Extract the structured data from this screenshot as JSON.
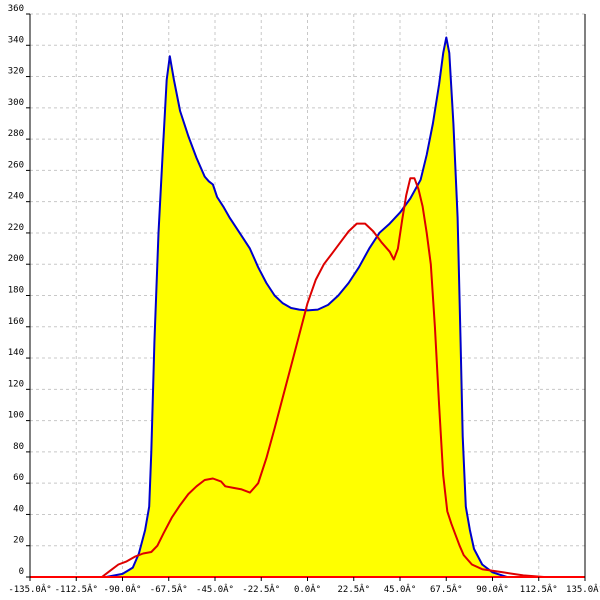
{
  "chart_data": {
    "type": "area",
    "title": "",
    "xlabel": "",
    "ylabel": "",
    "xlim": [
      -135,
      135
    ],
    "ylim": [
      0,
      360
    ],
    "grid": true,
    "x_ticks": [
      {
        "value": -135,
        "label": "-135.0Â°"
      },
      {
        "value": -112.5,
        "label": "-112.5Â°"
      },
      {
        "value": -90,
        "label": "-90.0Â°"
      },
      {
        "value": -67.5,
        "label": "-67.5Â°"
      },
      {
        "value": -45,
        "label": "-45.0Â°"
      },
      {
        "value": -22.5,
        "label": "-22.5Â°"
      },
      {
        "value": 0,
        "label": "0.0Â°"
      },
      {
        "value": 22.5,
        "label": "22.5Â°"
      },
      {
        "value": 45,
        "label": "45.0Â°"
      },
      {
        "value": 67.5,
        "label": "67.5Â°"
      },
      {
        "value": 90,
        "label": "90.0Â°"
      },
      {
        "value": 112.5,
        "label": "112.5Â°"
      },
      {
        "value": 135,
        "label": "135.0Â°"
      }
    ],
    "y_ticks": [
      {
        "value": 0,
        "label": "0"
      },
      {
        "value": 20,
        "label": "20"
      },
      {
        "value": 40,
        "label": "40"
      },
      {
        "value": 60,
        "label": "60"
      },
      {
        "value": 80,
        "label": "80"
      },
      {
        "value": 100,
        "label": "100"
      },
      {
        "value": 120,
        "label": "120"
      },
      {
        "value": 140,
        "label": "140"
      },
      {
        "value": 160,
        "label": "160"
      },
      {
        "value": 180,
        "label": "180"
      },
      {
        "value": 200,
        "label": "200"
      },
      {
        "value": 220,
        "label": "220"
      },
      {
        "value": 240,
        "label": "240"
      },
      {
        "value": 260,
        "label": "260"
      },
      {
        "value": 280,
        "label": "280"
      },
      {
        "value": 300,
        "label": "300"
      },
      {
        "value": 320,
        "label": "320"
      },
      {
        "value": 340,
        "label": "340"
      },
      {
        "value": 360,
        "label": "360"
      }
    ],
    "series": [
      {
        "style": "filled-area",
        "line_color": "#0000cc",
        "fill_color": "#ffff00",
        "points": [
          [
            -98,
            0
          ],
          [
            -90,
            2
          ],
          [
            -85,
            6
          ],
          [
            -82,
            15
          ],
          [
            -79,
            30
          ],
          [
            -77,
            45
          ],
          [
            -76,
            80
          ],
          [
            -74.5,
            150
          ],
          [
            -72.5,
            220
          ],
          [
            -70.5,
            270
          ],
          [
            -68.5,
            318
          ],
          [
            -67,
            333
          ],
          [
            -65,
            318
          ],
          [
            -62,
            298
          ],
          [
            -58,
            282
          ],
          [
            -54,
            268
          ],
          [
            -50,
            256
          ],
          [
            -48,
            253
          ],
          [
            -46,
            251
          ],
          [
            -44,
            243
          ],
          [
            -41,
            237
          ],
          [
            -38,
            230
          ],
          [
            -33,
            220
          ],
          [
            -28,
            210
          ],
          [
            -24,
            198
          ],
          [
            -20,
            188
          ],
          [
            -16,
            180
          ],
          [
            -12,
            175
          ],
          [
            -8,
            172
          ],
          [
            -4,
            171
          ],
          [
            0,
            170.5
          ],
          [
            5,
            171
          ],
          [
            10,
            174
          ],
          [
            15,
            180
          ],
          [
            20,
            188
          ],
          [
            25,
            198
          ],
          [
            30,
            210
          ],
          [
            35,
            220
          ],
          [
            40,
            226
          ],
          [
            45,
            233
          ],
          [
            50,
            242
          ],
          [
            55,
            254
          ],
          [
            58,
            270
          ],
          [
            61,
            290
          ],
          [
            64,
            315
          ],
          [
            66,
            335
          ],
          [
            67.5,
            345
          ],
          [
            69,
            335
          ],
          [
            71,
            290
          ],
          [
            73,
            230
          ],
          [
            74.5,
            150
          ],
          [
            75.5,
            90
          ],
          [
            77,
            45
          ],
          [
            79,
            30
          ],
          [
            81,
            18
          ],
          [
            85,
            8
          ],
          [
            90,
            3
          ],
          [
            97,
            0
          ]
        ]
      },
      {
        "style": "line",
        "line_color": "#dd0000",
        "points": [
          [
            -100,
            0
          ],
          [
            -96,
            4
          ],
          [
            -92,
            8
          ],
          [
            -88,
            10
          ],
          [
            -84,
            13
          ],
          [
            -80,
            15
          ],
          [
            -76,
            16
          ],
          [
            -73,
            20
          ],
          [
            -70,
            28
          ],
          [
            -66,
            38
          ],
          [
            -62,
            46
          ],
          [
            -58,
            53
          ],
          [
            -54,
            58
          ],
          [
            -50,
            62
          ],
          [
            -46,
            63
          ],
          [
            -42,
            61
          ],
          [
            -40,
            58
          ],
          [
            -36,
            57
          ],
          [
            -32,
            56
          ],
          [
            -28,
            54
          ],
          [
            -24,
            60
          ],
          [
            -20,
            76
          ],
          [
            -16,
            95
          ],
          [
            -12,
            115
          ],
          [
            -8,
            135
          ],
          [
            -4,
            155
          ],
          [
            0,
            175
          ],
          [
            4,
            190
          ],
          [
            8,
            200
          ],
          [
            12,
            207
          ],
          [
            16,
            214
          ],
          [
            20,
            221
          ],
          [
            24,
            226
          ],
          [
            28,
            226
          ],
          [
            32,
            221
          ],
          [
            36,
            214
          ],
          [
            40,
            208
          ],
          [
            42,
            203
          ],
          [
            44,
            210
          ],
          [
            46,
            228
          ],
          [
            48,
            244
          ],
          [
            50,
            255
          ],
          [
            52,
            255
          ],
          [
            54,
            248
          ],
          [
            56,
            237
          ],
          [
            58,
            220
          ],
          [
            60,
            200
          ],
          [
            62,
            160
          ],
          [
            64,
            110
          ],
          [
            66,
            65
          ],
          [
            68,
            42
          ],
          [
            70,
            34
          ],
          [
            72,
            27
          ],
          [
            74,
            20
          ],
          [
            76,
            14
          ],
          [
            80,
            8
          ],
          [
            85,
            5
          ],
          [
            90,
            4
          ],
          [
            95,
            3
          ],
          [
            105,
            1
          ],
          [
            115,
            0
          ],
          [
            135,
            0
          ]
        ]
      },
      {
        "style": "baseline",
        "line_color": "#ff0000",
        "points": [
          [
            -135,
            0
          ],
          [
            135,
            0
          ]
        ]
      }
    ]
  }
}
